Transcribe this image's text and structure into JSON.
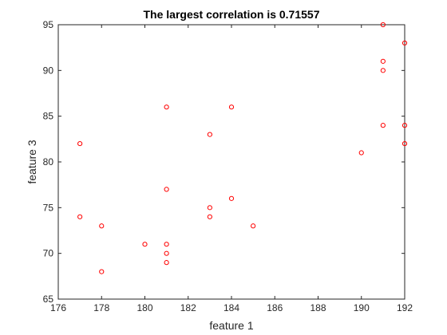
{
  "chart_data": {
    "type": "scatter",
    "title": "The largest correlation is 0.71557",
    "xlabel": "feature 1",
    "ylabel": "feature 3",
    "xlim": [
      176,
      192
    ],
    "ylim": [
      65,
      95
    ],
    "xticks": [
      176,
      178,
      180,
      182,
      184,
      186,
      188,
      190,
      192
    ],
    "yticks": [
      65,
      70,
      75,
      80,
      85,
      90,
      95
    ],
    "grid": false,
    "marker": "open-circle",
    "marker_color": "#ff0000",
    "points": [
      {
        "x": 177,
        "y": 82
      },
      {
        "x": 177,
        "y": 74
      },
      {
        "x": 178,
        "y": 73
      },
      {
        "x": 178,
        "y": 68
      },
      {
        "x": 180,
        "y": 71
      },
      {
        "x": 181,
        "y": 86
      },
      {
        "x": 181,
        "y": 77
      },
      {
        "x": 181,
        "y": 71
      },
      {
        "x": 181,
        "y": 70
      },
      {
        "x": 181,
        "y": 69
      },
      {
        "x": 183,
        "y": 83
      },
      {
        "x": 183,
        "y": 75
      },
      {
        "x": 183,
        "y": 74
      },
      {
        "x": 184,
        "y": 86
      },
      {
        "x": 184,
        "y": 76
      },
      {
        "x": 185,
        "y": 73
      },
      {
        "x": 190,
        "y": 81
      },
      {
        "x": 191,
        "y": 95
      },
      {
        "x": 191,
        "y": 91
      },
      {
        "x": 191,
        "y": 90
      },
      {
        "x": 191,
        "y": 84
      },
      {
        "x": 192,
        "y": 93
      },
      {
        "x": 192,
        "y": 84
      },
      {
        "x": 192,
        "y": 82
      }
    ]
  }
}
